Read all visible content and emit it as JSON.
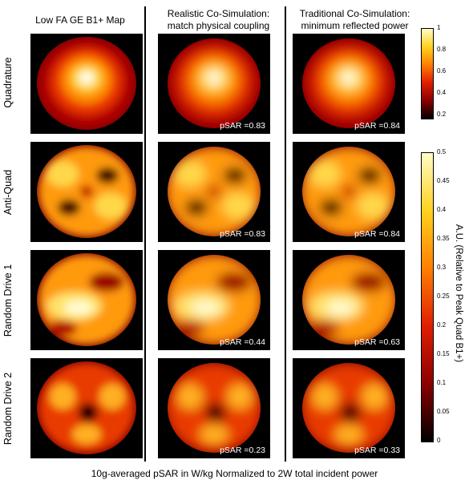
{
  "columns": [
    "Low FA GE B1+ Map",
    "Realistic Co-Simulation:\nmatch physical coupling",
    "Traditional Co-Simulation:\nminimum reflected power"
  ],
  "rows": [
    "Quadrature",
    "Anti-Quad",
    "Random Drive  1",
    "Random Drive  2"
  ],
  "psar": [
    [
      "pSAR =0.83",
      "pSAR =0.84"
    ],
    [
      "pSAR =0.83",
      "pSAR =0.84"
    ],
    [
      "pSAR =0.44",
      "pSAR =0.63"
    ],
    [
      "pSAR =0.23",
      "pSAR =0.33"
    ]
  ],
  "colorbar_top": {
    "ticks": [
      "1",
      "0.8",
      "0.6",
      "0.4",
      "0.2"
    ]
  },
  "colorbar_bottom": {
    "ticks": [
      "0.5",
      "0.45",
      "0.4",
      "0.35",
      "0.3",
      "0.25",
      "0.2",
      "0.15",
      "0.1",
      "0.05",
      "0"
    ],
    "label": "A.U. (Relative to Peak Quad B1+)"
  },
  "footer": "10g-averaged pSAR in W/kg Normalized to 2W total incident power",
  "colormap": [
    "#000000",
    "#8a0000",
    "#e01e00",
    "#ff7f00",
    "#ffd21e",
    "#fffcc8"
  ]
}
